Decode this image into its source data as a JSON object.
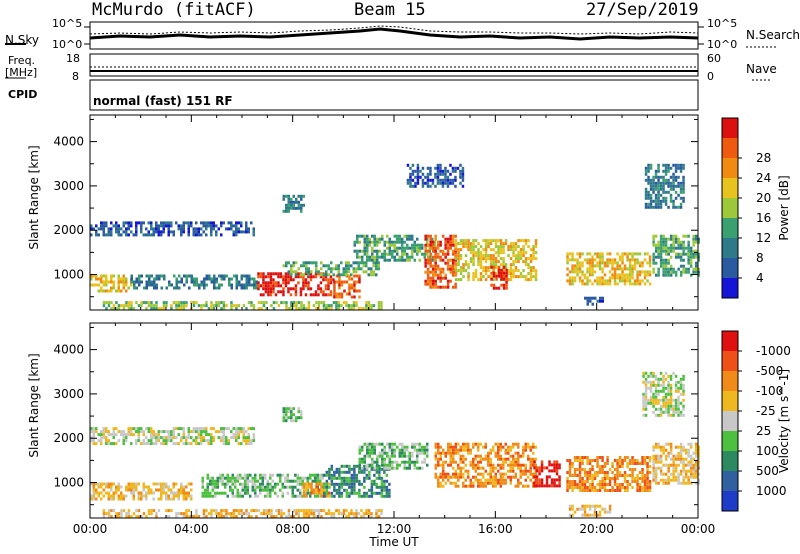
{
  "header": {
    "station": "McMurdo (fitACF)",
    "beam": "Beam 15",
    "date": "27/Sep/2019"
  },
  "status": {
    "nsky_label": "N.Sky",
    "nsky_ticks": [
      "10^5",
      "10^0"
    ],
    "nsearch_label": "N.Search",
    "nsearch_ticks": [
      "10^5",
      "10^0"
    ],
    "freq_label": "Freq.",
    "freq_unit": "[MHz]",
    "freq_ticks": [
      "18",
      "8"
    ],
    "nave_label": "Nave",
    "nave_ticks": [
      "60",
      "0"
    ],
    "cpid_label": "CPID",
    "cpid_text": "normal (fast) 151 RF"
  },
  "chart_data": [
    {
      "type": "heatmap",
      "title": "",
      "xlabel": "",
      "ylabel": "Slant Range [km]",
      "xlim": [
        0,
        24
      ],
      "ylim": [
        200,
        4600
      ],
      "xticks": [
        "00:00",
        "04:00",
        "08:00",
        "12:00",
        "16:00",
        "20:00",
        "00:00"
      ],
      "yticks": [
        1000,
        2000,
        3000,
        4000
      ],
      "colorbar": {
        "label": "Power [dB]",
        "ticks": [
          "4",
          "8",
          "12",
          "16",
          "20",
          "24",
          "28"
        ],
        "colors": [
          "#1515d8",
          "#2a5aa0",
          "#2f7a8a",
          "#3aa070",
          "#9cc83a",
          "#e8c21e",
          "#f08a10",
          "#ee5a10",
          "#dd1010"
        ]
      },
      "regions": [
        {
          "x": [
            0.0,
            1.6
          ],
          "y": [
            600,
            1000
          ],
          "c": 5
        },
        {
          "x": [
            1.6,
            6.6
          ],
          "y": [
            700,
            1000
          ],
          "c": 2
        },
        {
          "x": [
            0.0,
            6.5
          ],
          "y": [
            1900,
            2200
          ],
          "c": 1
        },
        {
          "x": [
            6.6,
            9.6
          ],
          "y": [
            550,
            1050
          ],
          "c": 8
        },
        {
          "x": [
            9.6,
            10.6
          ],
          "y": [
            500,
            1000
          ],
          "c": 7
        },
        {
          "x": [
            7.6,
            11.4
          ],
          "y": [
            1000,
            1300
          ],
          "c": 3
        },
        {
          "x": [
            10.4,
            13.6
          ],
          "y": [
            1300,
            1900
          ],
          "c": 3
        },
        {
          "x": [
            13.2,
            14.4
          ],
          "y": [
            700,
            1900
          ],
          "c": 7
        },
        {
          "x": [
            14.4,
            17.6
          ],
          "y": [
            900,
            1800
          ],
          "c": 5
        },
        {
          "x": [
            15.8,
            16.4
          ],
          "y": [
            700,
            1200
          ],
          "c": 8
        },
        {
          "x": [
            18.8,
            22.1
          ],
          "y": [
            800,
            1500
          ],
          "c": 5
        },
        {
          "x": [
            22.2,
            24.0
          ],
          "y": [
            1000,
            1900
          ],
          "c": 3
        },
        {
          "x": [
            21.9,
            23.4
          ],
          "y": [
            2500,
            3500
          ],
          "c": 2
        },
        {
          "x": [
            7.6,
            8.4
          ],
          "y": [
            2400,
            2800
          ],
          "c": 2
        },
        {
          "x": [
            12.5,
            14.7
          ],
          "y": [
            3000,
            3500
          ],
          "c": 1
        },
        {
          "x": [
            0.5,
            11.5
          ],
          "y": [
            250,
            400
          ],
          "c": 4
        },
        {
          "x": [
            19.5,
            20.2
          ],
          "y": [
            300,
            500
          ],
          "c": 1
        }
      ]
    },
    {
      "type": "heatmap",
      "title": "",
      "xlabel": "Time UT",
      "ylabel": "Slant Range [km]",
      "xlim": [
        0,
        24
      ],
      "ylim": [
        200,
        4600
      ],
      "xticks": [
        "00:00",
        "04:00",
        "08:00",
        "12:00",
        "16:00",
        "20:00",
        "00:00"
      ],
      "yticks": [
        1000,
        2000,
        3000,
        4000
      ],
      "colorbar": {
        "label": "Velocity [m s^-1]",
        "ticks": [
          "1000",
          "500",
          "100",
          "25",
          "-25",
          "-100",
          "-500",
          "-1000"
        ],
        "colors": [
          "#1e3cc8",
          "#3060a0",
          "#2d8a60",
          "#4ec040",
          "#c8c8c8",
          "#f0b820",
          "#f08a18",
          "#ef5018",
          "#e01010"
        ]
      },
      "regions": [
        {
          "x": [
            0.0,
            4.0
          ],
          "y": [
            600,
            1000
          ],
          "c": 5
        },
        {
          "x": [
            0.0,
            6.5
          ],
          "y": [
            1850,
            2250
          ],
          "c": 4
        },
        {
          "x": [
            4.4,
            9.2
          ],
          "y": [
            700,
            1200
          ],
          "c": 3
        },
        {
          "x": [
            8.4,
            9.4
          ],
          "y": [
            700,
            1000
          ],
          "c": 6
        },
        {
          "x": [
            9.2,
            11.8
          ],
          "y": [
            700,
            1400
          ],
          "c": 2
        },
        {
          "x": [
            10.6,
            13.3
          ],
          "y": [
            1300,
            1900
          ],
          "c": 3
        },
        {
          "x": [
            13.6,
            17.6
          ],
          "y": [
            900,
            1900
          ],
          "c": 6
        },
        {
          "x": [
            17.5,
            18.5
          ],
          "y": [
            900,
            1500
          ],
          "c": 8
        },
        {
          "x": [
            18.8,
            22.1
          ],
          "y": [
            800,
            1600
          ],
          "c": 6
        },
        {
          "x": [
            22.2,
            24.0
          ],
          "y": [
            1000,
            1900
          ],
          "c": 5
        },
        {
          "x": [
            21.8,
            23.4
          ],
          "y": [
            2500,
            3500
          ],
          "c": 4
        },
        {
          "x": [
            7.6,
            8.3
          ],
          "y": [
            2400,
            2700
          ],
          "c": 3
        },
        {
          "x": [
            0.5,
            11.5
          ],
          "y": [
            250,
            400
          ],
          "c": 5
        },
        {
          "x": [
            18.9,
            20.5
          ],
          "y": [
            250,
            500
          ],
          "c": 5
        }
      ]
    }
  ]
}
